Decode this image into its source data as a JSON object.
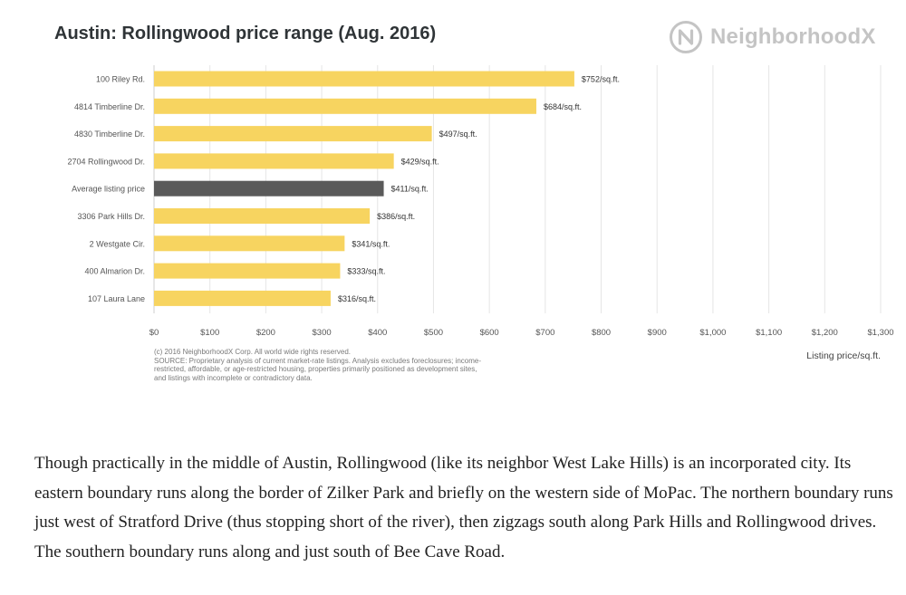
{
  "brand": {
    "name": "NeighborhoodX",
    "logo_icon": "neighborhoodx-logo-icon",
    "color": "#c4c4c4"
  },
  "colors": {
    "bar": "#f7d460",
    "highlight_bar": "#5a5a5a",
    "grid": "#e6e6e6"
  },
  "chart_data": {
    "type": "bar",
    "orientation": "horizontal",
    "title": "Austin: Rollingwood price range (Aug. 2016)",
    "xlabel": "Listing price/sq.ft.",
    "ylabel": "",
    "xlim": [
      0,
      1300
    ],
    "grid": true,
    "highlight_category": "Average listing price",
    "categories": [
      "100 Riley Rd.",
      "4814 Timberline Dr.",
      "4830 Timberline Dr.",
      "2704 Rollingwood Dr.",
      "Average listing price",
      "3306 Park Hills Dr.",
      "2 Westgate Cir.",
      "400 Almarion Dr.",
      "107 Laura Lane"
    ],
    "values": [
      752,
      684,
      497,
      429,
      411,
      386,
      341,
      333,
      316
    ],
    "value_labels": [
      "$752/sq.ft.",
      "$684/sq.ft.",
      "$497/sq.ft.",
      "$429/sq.ft.",
      "$411/sq.ft.",
      "$386/sq.ft.",
      "$341/sq.ft.",
      "$333/sq.ft.",
      "$316/sq.ft."
    ],
    "x_ticks": [
      0,
      100,
      200,
      300,
      400,
      500,
      600,
      700,
      800,
      900,
      1000,
      1100,
      1200,
      1300
    ],
    "x_tick_labels": [
      "$0",
      "$100",
      "$200",
      "$300",
      "$400",
      "$500",
      "$600",
      "$700",
      "$800",
      "$900",
      "$1,000",
      "$1,100",
      "$1,200",
      "$1,300"
    ]
  },
  "footnote": {
    "copyright": "(c) 2016 NeighborhoodX Corp. All world wide rights reserved.",
    "source": "SOURCE: Proprietary analysis of current market-rate listings. Analysis excludes foreclosures; income-restricted, affordable, or age-restricted housing, properties primarily positioned as development sites, and listings with incomplete or contradictory data."
  },
  "article": {
    "paragraph": "Though practically in the middle of Austin, Rollingwood (like its neighbor West Lake Hills) is an incorporated city. Its eastern boundary runs along the border of Zilker Park and briefly on the western side of MoPac. The northern boundary runs just west of Stratford Drive (thus stopping short of the river), then zigzags south along Park Hills and Rollingwood drives. The southern boundary runs along and just south of Bee Cave Road."
  }
}
